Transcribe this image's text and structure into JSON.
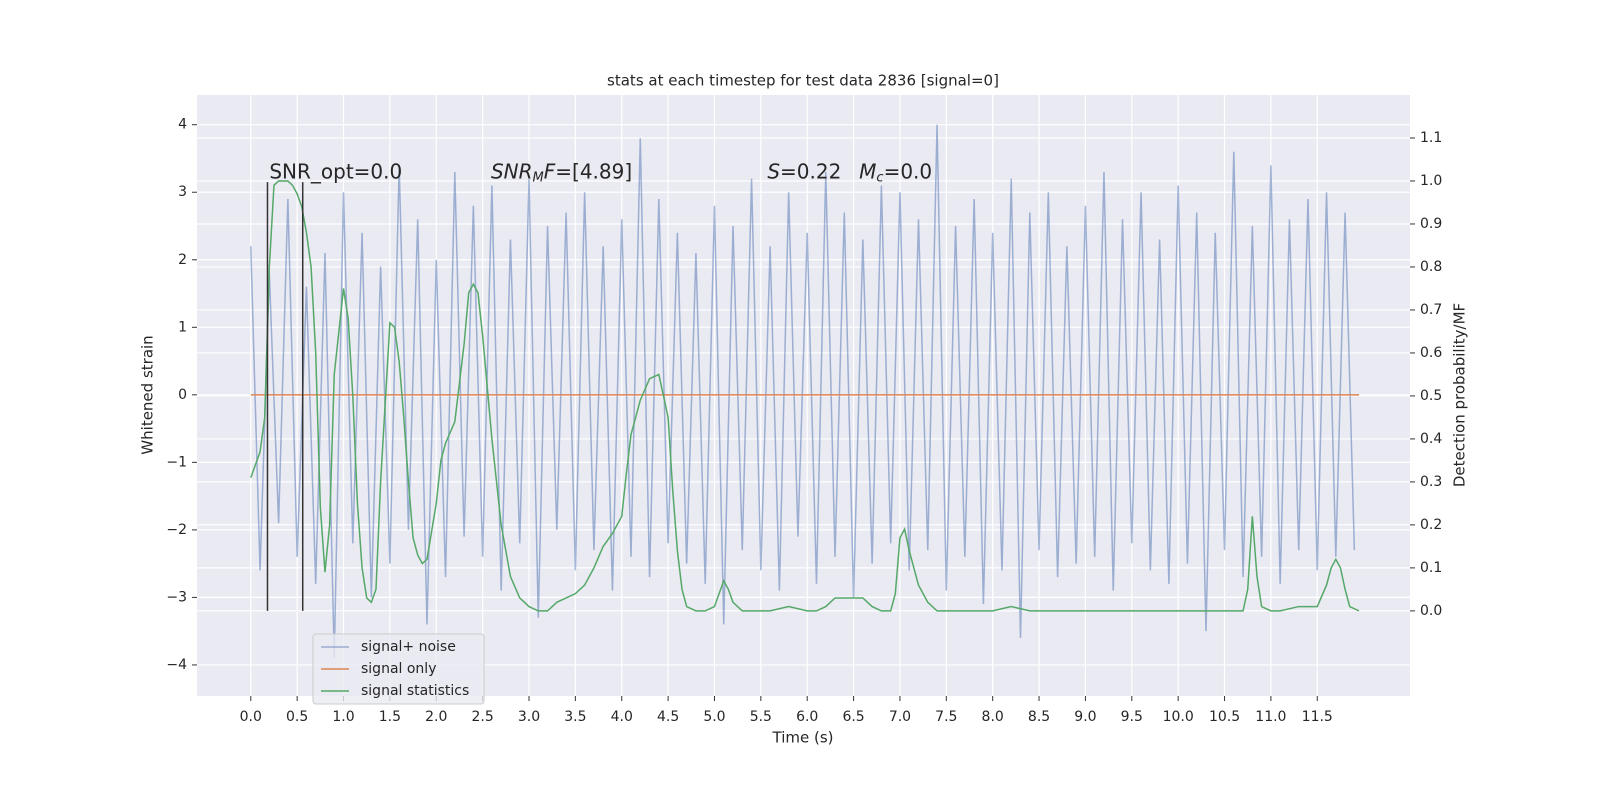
{
  "chart_data": {
    "type": "line",
    "title": "stats at each timestep for test data 2836 [signal=0]",
    "xlabel": "Time (s)",
    "ylabel": "Whitened strain",
    "y2label": "Detection probability/MF",
    "xlim": [
      -0.58,
      12.5
    ],
    "ylim": [
      -4.46,
      4.44
    ],
    "y2lim": [
      -0.198,
      1.2
    ],
    "xticks": [
      {
        "value": 0,
        "label": "0.0"
      },
      0.5,
      {
        "value": 1,
        "label": "1.0"
      },
      1.5,
      {
        "value": 2,
        "label": "2.0"
      },
      2.5,
      {
        "value": 3,
        "label": "3.0"
      },
      3.5,
      {
        "value": 4,
        "label": "4.0"
      },
      4.5,
      {
        "value": 5,
        "label": "5.0"
      },
      5.5,
      {
        "value": 6,
        "label": "6.0"
      },
      6.5,
      {
        "value": 7,
        "label": "7.0"
      },
      7.5,
      {
        "value": 8,
        "label": "8.0"
      },
      8.5,
      {
        "value": 9,
        "label": "9.0"
      },
      9.5,
      {
        "value": 10,
        "label": "10.0"
      },
      10.5,
      {
        "value": 11,
        "label": "11.0"
      },
      11.5
    ],
    "yticks": [
      {
        "value": -4,
        "label": "−4"
      },
      {
        "value": -3,
        "label": "−3"
      },
      {
        "value": -2,
        "label": "−2"
      },
      {
        "value": -1,
        "label": "−1"
      },
      0,
      1,
      2,
      3,
      4
    ],
    "y2ticks": [
      {
        "value": 0,
        "label": "0.0"
      },
      0.1,
      0.2,
      0.3,
      0.4,
      0.5,
      0.6,
      0.7,
      0.8,
      0.9,
      {
        "value": 1,
        "label": "1.0"
      },
      1.1
    ],
    "grid": true,
    "legend": "lower left",
    "vlines": {
      "x": [
        0.18,
        0.56
      ],
      "ymin": -3.2,
      "ymax": 3.15,
      "color": "#333333"
    },
    "annotations": [
      {
        "x": 0.2,
        "y": 3.29,
        "parts": [
          {
            "text": "SNR_opt=0.0"
          }
        ]
      },
      {
        "x": 2.59,
        "y": 3.29,
        "parts": [
          {
            "text": "SNR",
            "italic": true
          },
          {
            "text": "M",
            "italic": true,
            "sub": true
          },
          {
            "text": "F",
            "italic": true
          },
          {
            "text": "=[4.89]"
          }
        ]
      },
      {
        "x": 5.57,
        "y": 3.29,
        "parts": [
          {
            "text": "S",
            "italic": true
          },
          {
            "text": "=0.22"
          }
        ]
      },
      {
        "x": 6.56,
        "y": 3.29,
        "parts": [
          {
            "text": "M",
            "italic": true
          },
          {
            "text": "c",
            "italic": true,
            "sub": true
          },
          {
            "text": "=0.0"
          }
        ]
      }
    ],
    "series": [
      {
        "name": "signal+ noise",
        "color": "#4c72b0",
        "opacity": 0.5,
        "x": [
          0,
          0.1,
          0.2,
          0.3,
          0.4,
          0.5,
          0.6,
          0.7,
          0.8,
          0.9,
          1,
          1.1,
          1.2,
          1.3,
          1.4,
          1.5,
          1.6,
          1.7,
          1.8,
          1.9,
          2,
          2.1,
          2.2,
          2.3,
          2.4,
          2.5,
          2.6,
          2.7,
          2.8,
          2.9,
          3,
          3.1,
          3.2,
          3.3,
          3.4,
          3.5,
          3.6,
          3.7,
          3.8,
          3.9,
          4,
          4.1,
          4.2,
          4.3,
          4.4,
          4.5,
          4.6,
          4.7,
          4.8,
          4.9,
          5,
          5.1,
          5.2,
          5.3,
          5.4,
          5.5,
          5.6,
          5.7,
          5.8,
          5.9,
          6,
          6.1,
          6.2,
          6.3,
          6.4,
          6.5,
          6.6,
          6.7,
          6.8,
          6.9,
          7,
          7.1,
          7.2,
          7.3,
          7.4,
          7.5,
          7.6,
          7.7,
          7.8,
          7.9,
          8,
          8.1,
          8.2,
          8.3,
          8.4,
          8.5,
          8.6,
          8.7,
          8.8,
          8.9,
          9,
          9.1,
          9.2,
          9.3,
          9.4,
          9.5,
          9.6,
          9.7,
          9.8,
          9.9,
          10,
          10.1,
          10.2,
          10.3,
          10.4,
          10.5,
          10.6,
          10.7,
          10.8,
          10.9,
          11,
          11.1,
          11.2,
          11.3,
          11.4,
          11.5,
          11.6,
          11.7,
          11.8,
          11.9
        ],
        "values": [
          2.2,
          -2.6,
          1.8,
          -1.9,
          2.9,
          -2.4,
          1.6,
          -2.8,
          2.1,
          -3.9,
          3.0,
          -2.2,
          2.4,
          -3.0,
          1.9,
          -2.5,
          3.4,
          -2.0,
          2.6,
          -3.4,
          2.0,
          -2.7,
          3.3,
          -2.1,
          2.8,
          -2.4,
          3.1,
          -2.9,
          2.3,
          -2.2,
          3.2,
          -3.3,
          2.5,
          -2.0,
          2.7,
          -2.6,
          3.0,
          -2.3,
          2.2,
          -2.9,
          2.6,
          -2.4,
          3.8,
          -2.7,
          2.9,
          -2.2,
          2.4,
          -2.5,
          2.1,
          -2.8,
          2.8,
          -3.4,
          2.5,
          -2.3,
          3.2,
          -2.6,
          2.2,
          -2.9,
          3.0,
          -2.1,
          2.4,
          -2.8,
          3.3,
          -2.4,
          2.7,
          -3.0,
          2.3,
          -2.5,
          3.1,
          -2.2,
          3.0,
          -2.6,
          2.6,
          -2.3,
          4.0,
          -2.9,
          2.5,
          -2.4,
          2.9,
          -3.1,
          2.4,
          -2.6,
          3.2,
          -3.6,
          2.7,
          -2.3,
          3.0,
          -2.7,
          2.2,
          -2.5,
          2.8,
          -2.4,
          3.3,
          -2.9,
          2.6,
          -2.2,
          3.0,
          -2.6,
          2.3,
          -2.8,
          3.1,
          -2.5,
          2.7,
          -3.5,
          2.4,
          -2.3,
          3.6,
          -2.7,
          2.5,
          -2.4,
          3.4,
          -2.8,
          2.6,
          -2.3,
          2.9,
          -2.6,
          3.0,
          -2.4,
          2.7,
          -2.3
        ]
      },
      {
        "name": "signal only",
        "color": "#dd8452",
        "opacity": 1,
        "x": [
          0,
          11.95
        ],
        "values": [
          0,
          0
        ]
      },
      {
        "name": "signal statistics",
        "color": "#55a868",
        "opacity": 1,
        "axis": "y2",
        "x": [
          0,
          0.1,
          0.15,
          0.2,
          0.25,
          0.3,
          0.4,
          0.45,
          0.5,
          0.55,
          0.6,
          0.65,
          0.7,
          0.75,
          0.8,
          0.85,
          0.9,
          1,
          1.05,
          1.1,
          1.15,
          1.2,
          1.25,
          1.3,
          1.35,
          1.4,
          1.5,
          1.55,
          1.6,
          1.65,
          1.7,
          1.75,
          1.8,
          1.85,
          1.9,
          2,
          2.05,
          2.1,
          2.2,
          2.3,
          2.35,
          2.4,
          2.45,
          2.5,
          2.6,
          2.7,
          2.8,
          2.9,
          3,
          3.1,
          3.2,
          3.3,
          3.4,
          3.5,
          3.6,
          3.7,
          3.8,
          3.9,
          4,
          4.05,
          4.1,
          4.2,
          4.3,
          4.4,
          4.45,
          4.5,
          4.55,
          4.6,
          4.65,
          4.7,
          4.8,
          4.9,
          5,
          5.05,
          5.1,
          5.15,
          5.2,
          5.3,
          5.6,
          5.8,
          6,
          6.1,
          6.2,
          6.3,
          6.4,
          6.6,
          6.7,
          6.8,
          6.9,
          6.95,
          7,
          7.05,
          7.1,
          7.2,
          7.3,
          7.4,
          7.6,
          8,
          8.2,
          8.4,
          9,
          10,
          10.7,
          10.75,
          10.8,
          10.85,
          10.9,
          11,
          11.1,
          11.3,
          11.5,
          11.6,
          11.65,
          11.7,
          11.75,
          11.8,
          11.85,
          11.95
        ],
        "values": [
          0.31,
          0.37,
          0.45,
          0.8,
          0.99,
          1.0,
          1.0,
          0.99,
          0.97,
          0.94,
          0.88,
          0.8,
          0.6,
          0.24,
          0.09,
          0.2,
          0.55,
          0.75,
          0.68,
          0.5,
          0.25,
          0.1,
          0.03,
          0.02,
          0.05,
          0.3,
          0.67,
          0.66,
          0.58,
          0.45,
          0.3,
          0.17,
          0.13,
          0.11,
          0.12,
          0.25,
          0.35,
          0.39,
          0.44,
          0.62,
          0.74,
          0.76,
          0.74,
          0.64,
          0.4,
          0.2,
          0.08,
          0.03,
          0.01,
          0.0,
          0.0,
          0.02,
          0.03,
          0.04,
          0.06,
          0.1,
          0.15,
          0.18,
          0.22,
          0.32,
          0.41,
          0.49,
          0.54,
          0.55,
          0.5,
          0.45,
          0.28,
          0.14,
          0.05,
          0.01,
          0.0,
          0.0,
          0.01,
          0.04,
          0.07,
          0.05,
          0.02,
          0.0,
          0.0,
          0.01,
          0.0,
          0.0,
          0.01,
          0.03,
          0.03,
          0.03,
          0.01,
          0.0,
          0.0,
          0.04,
          0.17,
          0.19,
          0.14,
          0.06,
          0.02,
          0.0,
          0.0,
          0.0,
          0.01,
          0.0,
          0.0,
          0.0,
          0.0,
          0.05,
          0.22,
          0.08,
          0.01,
          0.0,
          0.0,
          0.01,
          0.01,
          0.06,
          0.1,
          0.12,
          0.1,
          0.05,
          0.01,
          0.0
        ]
      }
    ]
  }
}
